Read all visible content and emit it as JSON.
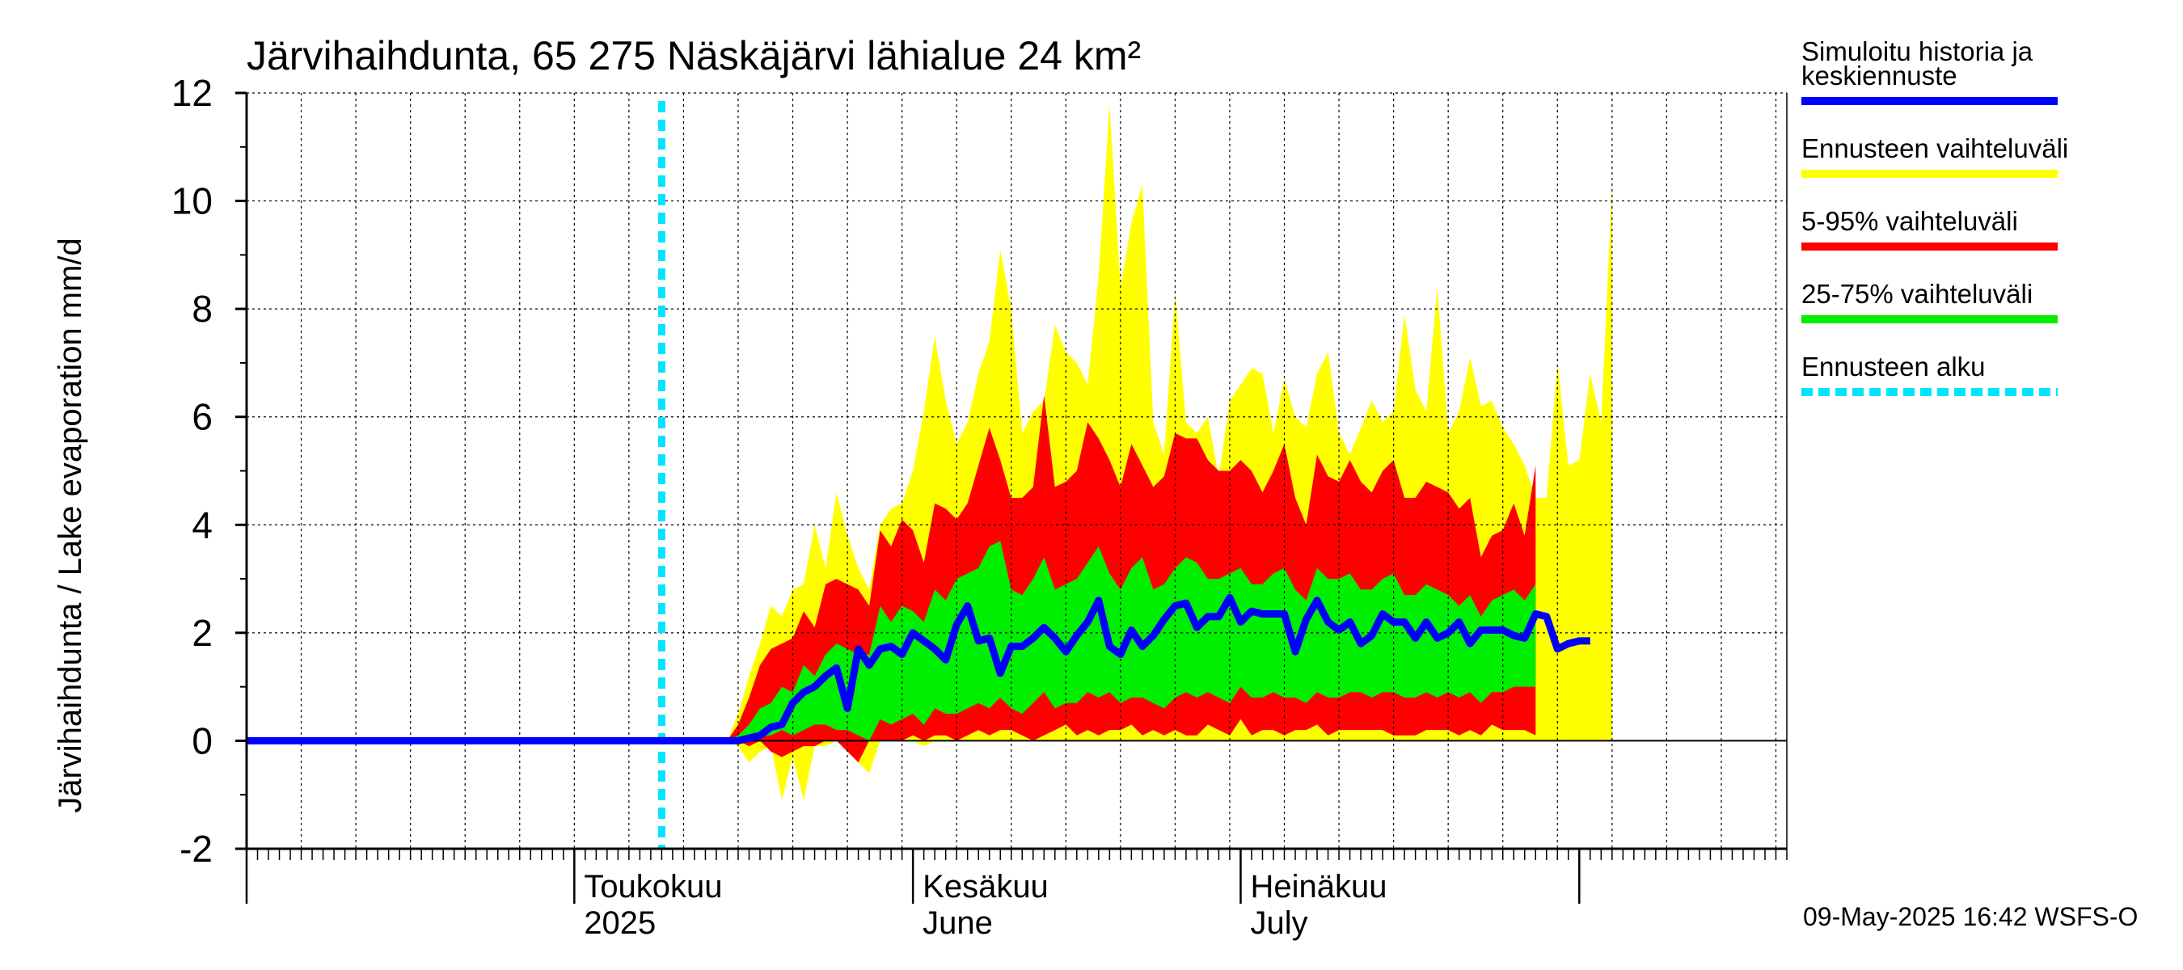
{
  "chart_data": {
    "type": "area",
    "title": "Järvihaihdunta, 65 275 Näskäjärvi lähialue 24 km²",
    "ylabel": "Järvihaihdunta / Lake evaporation   mm/d",
    "xlabel": "",
    "ylim": [
      -2,
      12
    ],
    "yticks": [
      -2,
      0,
      2,
      4,
      6,
      8,
      10,
      12
    ],
    "x_start": "2025-04-01",
    "days": 141,
    "forecast_start_day": 38,
    "month_boundaries": [
      0,
      30,
      61,
      91,
      122
    ],
    "x_labels": [
      {
        "day": 30,
        "line1": "Toukokuu",
        "line2": "2025"
      },
      {
        "day": 61,
        "line1": "Kesäkuu",
        "line2": "June"
      },
      {
        "day": 91,
        "line1": "Heinäkuu",
        "line2": "July"
      }
    ],
    "band_start_day": 44,
    "series": [
      {
        "name": "Ennusteen vaihteluväli",
        "color": "#ffff00",
        "upper": [
          0.0,
          0.5,
          1.2,
          1.8,
          2.5,
          2.3,
          2.8,
          2.9,
          4.0,
          3.2,
          4.6,
          3.8,
          3.2,
          2.8,
          4.0,
          4.3,
          4.4,
          5.0,
          6.1,
          7.5,
          6.3,
          5.5,
          5.9,
          6.8,
          7.4,
          9.1,
          8.0,
          5.7,
          6.1,
          6.3,
          7.7,
          7.2,
          7.0,
          6.6,
          8.6,
          11.8,
          8.4,
          9.6,
          10.3,
          5.9,
          5.3,
          8.3,
          5.9,
          5.7,
          6.0,
          4.9,
          6.3,
          6.6,
          6.9,
          6.8,
          5.7,
          6.7,
          6.0,
          5.8,
          6.8,
          7.2,
          5.7,
          5.3,
          5.8,
          6.3,
          5.9,
          6.1,
          7.9,
          6.5,
          6.1,
          8.4,
          5.7,
          6.1,
          7.1,
          6.2,
          6.3,
          5.8,
          5.5,
          5.1,
          4.5,
          4.5,
          7.0,
          5.1,
          5.2,
          6.8,
          5.9,
          10.3
        ],
        "lower": [
          0.0,
          -0.1,
          -0.4,
          -0.2,
          -0.1,
          -1.1,
          -0.3,
          -1.1,
          -0.1,
          -0.1,
          0.0,
          -0.2,
          -0.4,
          -0.6,
          0.0,
          0.0,
          0.0,
          0.0,
          -0.1,
          0.0,
          0.0,
          0.0,
          0.0,
          0.0,
          0.0,
          0.0,
          0.0,
          0.0,
          0.0,
          0.0,
          0.0,
          0.0,
          0.0,
          0.0,
          0.0,
          0.0,
          0.0,
          0.0,
          0.0,
          0.0,
          0.0,
          0.0,
          0.0,
          0.0,
          0.0,
          0.0,
          0.0,
          0.0,
          0.0,
          0.0,
          0.0,
          0.0,
          0.0,
          0.0,
          0.0,
          0.0,
          0.0,
          0.0,
          0.0,
          0.0,
          0.0,
          0.0,
          0.0,
          0.0,
          0.0,
          0.0,
          0.0,
          0.0,
          0.0,
          0.0,
          0.0,
          0.0,
          0.0,
          0.0,
          0.0,
          0.0,
          0.0,
          0.0,
          0.0,
          0.0,
          0.0,
          0.0
        ]
      },
      {
        "name": "5-95% vaihteluväli",
        "color": "#ff0000",
        "upper": [
          0.0,
          0.3,
          0.8,
          1.4,
          1.7,
          1.8,
          1.9,
          2.4,
          2.1,
          2.9,
          3.0,
          2.9,
          2.8,
          2.5,
          3.9,
          3.6,
          4.1,
          3.9,
          3.3,
          4.4,
          4.3,
          4.1,
          4.4,
          5.1,
          5.8,
          5.2,
          4.5,
          4.5,
          4.7,
          6.4,
          4.7,
          4.8,
          5.0,
          5.9,
          5.6,
          5.2,
          4.7,
          5.5,
          5.1,
          4.7,
          4.9,
          5.7,
          5.6,
          5.6,
          5.2,
          5.0,
          5.0,
          5.2,
          5.0,
          4.6,
          5.0,
          5.5,
          4.5,
          4.0,
          5.3,
          4.9,
          4.8,
          5.2,
          4.8,
          4.6,
          5.0,
          5.2,
          4.5,
          4.5,
          4.8,
          4.7,
          4.6,
          4.3,
          4.5,
          3.4,
          3.8,
          3.9,
          4.4,
          3.8,
          5.1
        ],
        "lower": [
          0.0,
          0.0,
          -0.1,
          0.0,
          -0.2,
          -0.3,
          -0.2,
          -0.1,
          -0.1,
          0.0,
          0.0,
          -0.2,
          -0.4,
          0.0,
          0.0,
          0.0,
          0.0,
          0.1,
          0.0,
          0.1,
          0.1,
          0.0,
          0.1,
          0.2,
          0.1,
          0.2,
          0.2,
          0.1,
          0.0,
          0.1,
          0.2,
          0.3,
          0.1,
          0.2,
          0.1,
          0.2,
          0.2,
          0.3,
          0.1,
          0.2,
          0.1,
          0.2,
          0.1,
          0.1,
          0.3,
          0.2,
          0.1,
          0.4,
          0.1,
          0.2,
          0.2,
          0.1,
          0.2,
          0.2,
          0.3,
          0.1,
          0.2,
          0.2,
          0.2,
          0.2,
          0.2,
          0.1,
          0.1,
          0.1,
          0.2,
          0.2,
          0.2,
          0.1,
          0.2,
          0.1,
          0.3,
          0.2,
          0.2,
          0.2,
          0.1
        ]
      },
      {
        "name": "25-75% vaihteluväli",
        "color": "#00ee00",
        "upper": [
          0.0,
          0.1,
          0.3,
          0.6,
          0.7,
          1.0,
          0.9,
          1.4,
          1.2,
          1.6,
          1.8,
          1.7,
          1.6,
          1.6,
          2.5,
          2.2,
          2.5,
          2.4,
          2.2,
          2.8,
          2.6,
          3.0,
          3.1,
          3.2,
          3.6,
          3.7,
          2.8,
          2.7,
          3.0,
          3.4,
          2.8,
          2.9,
          3.0,
          3.3,
          3.6,
          3.1,
          2.8,
          3.2,
          3.4,
          2.8,
          2.9,
          3.2,
          3.4,
          3.3,
          3.0,
          3.0,
          3.1,
          3.2,
          2.9,
          2.9,
          3.1,
          3.2,
          2.8,
          2.6,
          3.2,
          3.0,
          3.0,
          3.1,
          2.8,
          2.8,
          3.0,
          3.1,
          2.7,
          2.7,
          2.9,
          2.8,
          2.7,
          2.5,
          2.7,
          2.3,
          2.6,
          2.7,
          2.8,
          2.6,
          2.9
        ],
        "lower": [
          0.0,
          0.0,
          0.0,
          0.1,
          0.1,
          0.2,
          0.1,
          0.2,
          0.3,
          0.3,
          0.2,
          0.2,
          0.1,
          0.0,
          0.4,
          0.3,
          0.4,
          0.5,
          0.3,
          0.6,
          0.5,
          0.5,
          0.6,
          0.7,
          0.6,
          0.8,
          0.6,
          0.5,
          0.7,
          0.9,
          0.6,
          0.7,
          0.7,
          0.9,
          0.8,
          0.9,
          0.7,
          0.8,
          0.8,
          0.7,
          0.6,
          0.8,
          0.9,
          0.8,
          0.9,
          0.8,
          0.7,
          1.0,
          0.8,
          0.8,
          0.9,
          0.8,
          0.8,
          0.7,
          0.9,
          0.8,
          0.8,
          0.9,
          0.9,
          0.8,
          0.9,
          0.9,
          0.8,
          0.8,
          0.9,
          0.8,
          0.9,
          0.8,
          0.9,
          0.7,
          0.9,
          0.9,
          1.0,
          1.0,
          1.0
        ]
      },
      {
        "name": "Simuloitu historia ja keskiennuste",
        "color": "#0000ff",
        "start_day": 0,
        "values": [
          0,
          0,
          0,
          0,
          0,
          0,
          0,
          0,
          0,
          0,
          0,
          0,
          0,
          0,
          0,
          0,
          0,
          0,
          0,
          0,
          0,
          0,
          0,
          0,
          0,
          0,
          0,
          0,
          0,
          0,
          0,
          0,
          0,
          0,
          0,
          0,
          0,
          0,
          0,
          0,
          0,
          0,
          0,
          0,
          0.0,
          0.0,
          0.05,
          0.1,
          0.25,
          0.3,
          0.7,
          0.9,
          1.0,
          1.2,
          1.35,
          0.6,
          1.7,
          1.4,
          1.7,
          1.75,
          1.6,
          2.0,
          1.85,
          1.7,
          1.5,
          2.15,
          2.5,
          1.85,
          1.9,
          1.25,
          1.75,
          1.75,
          1.9,
          2.1,
          1.9,
          1.65,
          1.95,
          2.2,
          2.6,
          1.75,
          1.6,
          2.05,
          1.75,
          1.95,
          2.25,
          2.5,
          2.55,
          2.1,
          2.3,
          2.3,
          2.65,
          2.2,
          2.4,
          2.35,
          2.35,
          2.35,
          1.65,
          2.25,
          2.6,
          2.2,
          2.05,
          2.2,
          1.8,
          1.95,
          2.35,
          2.2,
          2.2,
          1.9,
          2.2,
          1.9,
          2.0,
          2.2,
          1.8,
          2.05,
          2.05,
          2.05,
          1.95,
          1.9,
          2.35,
          2.3,
          1.7,
          1.8,
          1.85,
          1.85
        ]
      }
    ],
    "legend": [
      {
        "label_lines": [
          "Simuloitu historia ja",
          "keskiennuste"
        ],
        "color": "#0000ff",
        "style": "solid"
      },
      {
        "label_lines": [
          "Ennusteen vaihteluväli"
        ],
        "color": "#ffff00",
        "style": "solid"
      },
      {
        "label_lines": [
          "5-95% vaihteluväli"
        ],
        "color": "#ff0000",
        "style": "solid"
      },
      {
        "label_lines": [
          "25-75% vaihteluväli"
        ],
        "color": "#00ee00",
        "style": "solid"
      },
      {
        "label_lines": [
          "Ennusteen alku"
        ],
        "color": "#00e5ff",
        "style": "dashed"
      }
    ],
    "footer": "09-May-2025 16:42 WSFS-O"
  }
}
